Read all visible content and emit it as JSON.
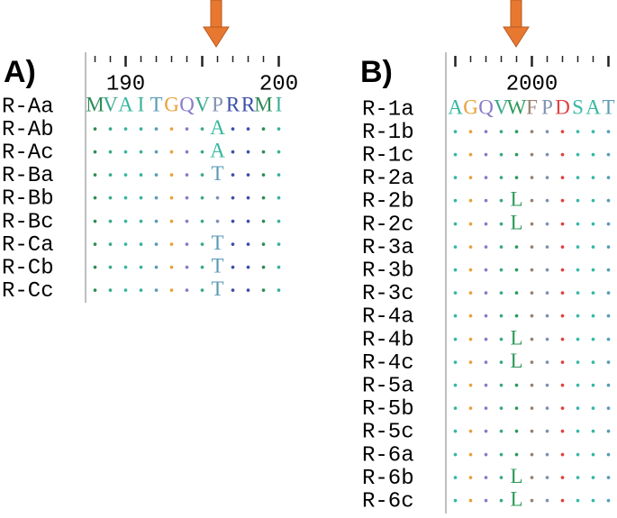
{
  "panels": [
    {
      "label": "A)",
      "xlim": [
        188,
        200
      ],
      "xticks": [
        190,
        200
      ],
      "rows": [
        {
          "name": "R-Aa",
          "seq": "MVAITGQVPRRMI"
        },
        {
          "name": "R-Ab",
          "seq": "........A...."
        },
        {
          "name": "R-Ac",
          "seq": "........A...."
        },
        {
          "name": "R-Ba",
          "seq": "........T...."
        },
        {
          "name": "R-Bb",
          "seq": "............."
        },
        {
          "name": "R-Bc",
          "seq": "............."
        },
        {
          "name": "R-Ca",
          "seq": "........T...."
        },
        {
          "name": "R-Cb",
          "seq": "........T...."
        },
        {
          "name": "R-Cc",
          "seq": "........T...."
        }
      ]
    },
    {
      "label": "B)",
      "xlim": [
        1995,
        2005
      ],
      "xticks": [
        2000
      ],
      "rows": [
        {
          "name": "R-1a",
          "seq": "AGQVWFPDSAT"
        },
        {
          "name": "R-1b",
          "seq": "..........."
        },
        {
          "name": "R-1c",
          "seq": "..........."
        },
        {
          "name": "R-2a",
          "seq": "..........."
        },
        {
          "name": "R-2b",
          "seq": "....L......"
        },
        {
          "name": "R-2c",
          "seq": "....L......"
        },
        {
          "name": "R-3a",
          "seq": "..........."
        },
        {
          "name": "R-3b",
          "seq": "..........."
        },
        {
          "name": "R-3c",
          "seq": "..........."
        },
        {
          "name": "R-4a",
          "seq": "..........."
        },
        {
          "name": "R-4b",
          "seq": "....L......"
        },
        {
          "name": "R-4c",
          "seq": "....L......"
        },
        {
          "name": "R-5a",
          "seq": "..........."
        },
        {
          "name": "R-5b",
          "seq": "..........."
        },
        {
          "name": "R-5c",
          "seq": "..........."
        },
        {
          "name": "R-6a",
          "seq": "..........."
        },
        {
          "name": "R-6b",
          "seq": "....L......"
        },
        {
          "name": "R-6c",
          "seq": "....L......"
        }
      ]
    }
  ],
  "residue_colors": {
    "M": "#2e8b57",
    "V": "#3aa88a",
    "A": "#35b8a0",
    "I": "#3ab09a",
    "T": "#5a9ab8",
    "G": "#e8a23a",
    "Q": "#8a7ac8",
    "P": "#8090b0",
    "R": "#3a4fa8",
    "W": "#2e9a5a",
    "F": "#9a8070",
    "D": "#e04040",
    "S": "#38b8a8",
    "L": "#2e9a5a"
  }
}
